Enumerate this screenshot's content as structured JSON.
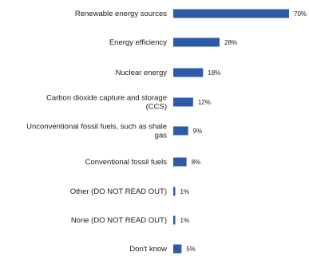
{
  "chart_data": {
    "type": "bar",
    "orientation": "horizontal",
    "title": "",
    "xlabel": "",
    "ylabel": "",
    "xlim": [
      0,
      70
    ],
    "grid": false,
    "legend": "none",
    "bar_color": "#2f5aa8",
    "categories": [
      [
        "Renewable energy sources"
      ],
      [
        "Energy efficiency"
      ],
      [
        "Nuclear energy"
      ],
      [
        "Carbon dioxide capture and storage",
        "(CCS)"
      ],
      [
        "Unconventional fossil fuels, such as shale",
        "gas"
      ],
      [
        "Conventional fossil fuels"
      ],
      [
        "Other (DO NOT READ OUT)"
      ],
      [
        "None (DO NOT READ OUT)"
      ],
      [
        "Don't know"
      ]
    ],
    "values": [
      70,
      28,
      18,
      12,
      9,
      8,
      1,
      1,
      5
    ],
    "value_labels": [
      "70%",
      "28%",
      "18%",
      "12%",
      "9%",
      "8%",
      "1%",
      "1%",
      "5%"
    ]
  }
}
